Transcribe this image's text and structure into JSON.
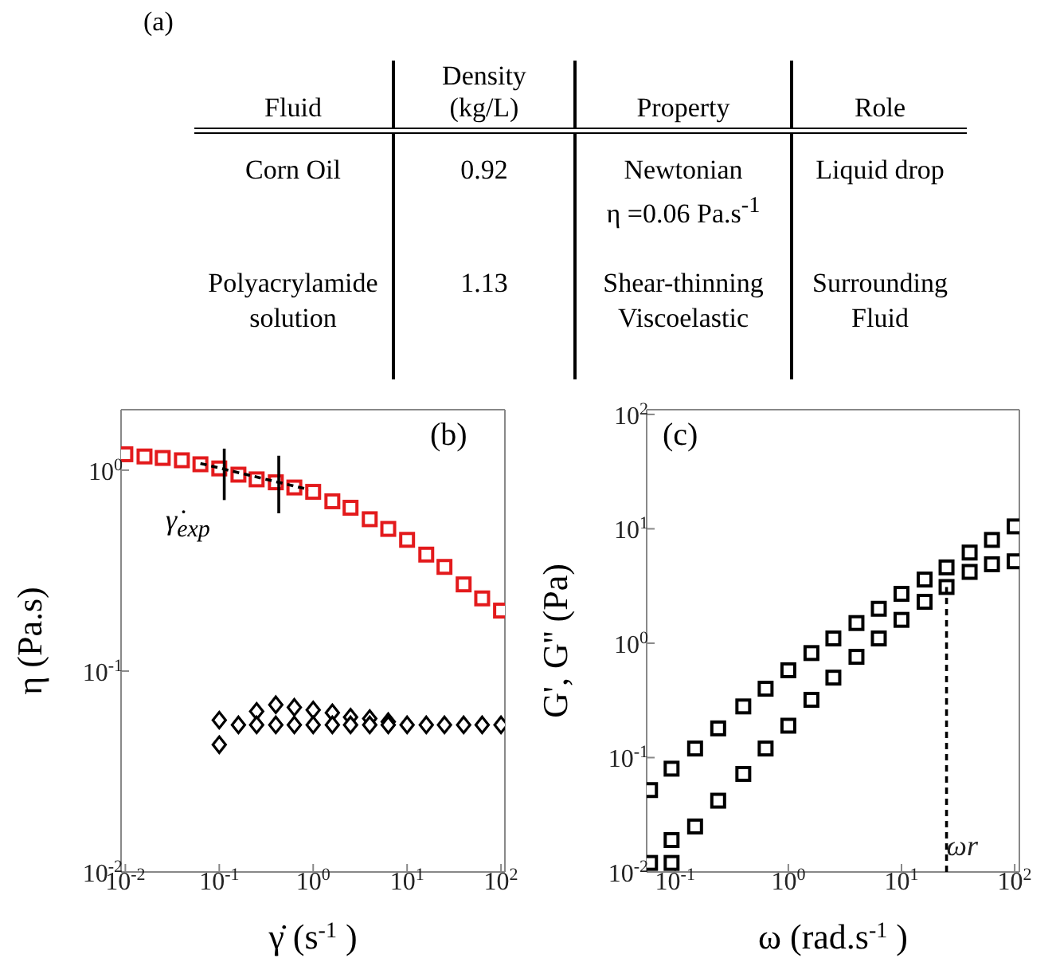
{
  "chart_data": [
    {
      "type": "other",
      "title": "(a)",
      "categories": [
        "Fluid",
        "Density\n(kg/L)",
        "Property",
        "Role"
      ],
      "annotations": [
        "Corn Oil",
        "0.92",
        "Newtonian\nη =0.06 Pa.s$^{-1}$",
        "Liquid drop",
        "Polyacrylamide\nsolution",
        "1.13",
        "Shear-thinning\nViscoelastic",
        "Surrounding\nFluid"
      ]
    },
    {
      "type": "scatter",
      "title": "(b)",
      "xlabel": "γ̇ (s$^{-1}$)",
      "ylabel": "η (Pa.s)",
      "log": "xy",
      "xlim": [
        0.009,
        110
      ],
      "ylim": [
        0.01,
        2
      ],
      "xticks": [
        {
          "value": 0.01,
          "label": "10$^{-2}$"
        },
        {
          "value": 0.1,
          "label": "10$^{-1}$"
        },
        {
          "value": 1,
          "label": "10$^{0}$"
        },
        {
          "value": 10,
          "label": "10$^{1}$"
        },
        {
          "value": 100,
          "label": "10$^{2}$"
        }
      ],
      "yticks": [
        {
          "value": 0.01,
          "label": "10$^{-2}$"
        },
        {
          "value": 0.1,
          "label": "10$^{-1}$"
        },
        {
          "value": 1,
          "label": "10$^{0}$"
        }
      ],
      "annotations": [
        "γ̇$_{exp}$"
      ],
      "series": [
        {
          "type": "scatter",
          "marker": "square",
          "color": "#e31a1c",
          "x": [
            0.01,
            0.016,
            0.025,
            0.04,
            0.063,
            0.1,
            0.16,
            0.25,
            0.4,
            0.63,
            1,
            1.6,
            2.5,
            4,
            6.3,
            10,
            16,
            25,
            40,
            63,
            100
          ],
          "values": [
            1.2,
            1.17,
            1.15,
            1.12,
            1.07,
            1.02,
            0.95,
            0.9,
            0.87,
            0.82,
            0.78,
            0.7,
            0.65,
            0.57,
            0.51,
            0.45,
            0.38,
            0.33,
            0.27,
            0.23,
            0.2
          ]
        },
        {
          "type": "scatter",
          "marker": "diamond",
          "color": "#000000",
          "x": [
            0.1,
            0.25,
            0.4,
            0.63,
            1,
            1.6,
            2.5,
            4,
            6.3
          ],
          "values": [
            0.057,
            0.063,
            0.068,
            0.066,
            0.064,
            0.062,
            0.059,
            0.058,
            0.056
          ]
        },
        {
          "type": "scatter",
          "marker": "diamond",
          "color": "#000000",
          "x": [
            0.1,
            0.16,
            0.25,
            0.4,
            0.63,
            1,
            1.6,
            2.5,
            4,
            6.3,
            10,
            16,
            25,
            40,
            63,
            100
          ],
          "values": [
            0.043,
            0.054,
            0.054,
            0.054,
            0.054,
            0.054,
            0.054,
            0.054,
            0.054,
            0.054,
            0.054,
            0.054,
            0.054,
            0.054,
            0.054,
            0.054
          ]
        },
        {
          "type": "line",
          "line_style": "dashed",
          "marker": "none",
          "color": "#000000",
          "x": [
            0.063,
            0.9
          ],
          "values": [
            1.08,
            0.8
          ]
        },
        {
          "type": "line",
          "line_style": "solid",
          "marker": "none",
          "color": "#000000",
          "x": [
            0.113,
            0.113
          ],
          "values": [
            0.71,
            1.28
          ]
        },
        {
          "type": "line",
          "line_style": "solid",
          "marker": "none",
          "color": "#000000",
          "x": [
            0.43,
            0.43
          ],
          "values": [
            0.61,
            1.18
          ]
        }
      ]
    },
    {
      "type": "scatter",
      "title": "(c)",
      "xlabel": "ω (rad.s$^{-1}$)",
      "ylabel": "G', G'' (Pa)",
      "log": "xy",
      "xlim": [
        0.056,
        110
      ],
      "ylim": [
        0.01,
        110
      ],
      "xticks": [
        {
          "value": 0.1,
          "label": "10$^{-1}$"
        },
        {
          "value": 1,
          "label": "10$^{0}$"
        },
        {
          "value": 10,
          "label": "10$^{1}$"
        },
        {
          "value": 100,
          "label": "10$^{2}$"
        }
      ],
      "yticks": [
        {
          "value": 0.01,
          "label": "10$^{-2}$"
        },
        {
          "value": 0.1,
          "label": "10$^{-1}$"
        },
        {
          "value": 1,
          "label": "10$^{0}$"
        },
        {
          "value": 10,
          "label": "10$^{1}$"
        },
        {
          "value": 100,
          "label": "10$^{2}$"
        }
      ],
      "annotations": [
        {
          "text": "ωr",
          "x": 25,
          "y": 0.014
        }
      ],
      "series": [
        {
          "type": "scatter",
          "marker": "square",
          "color": "#000000",
          "x": [
            0.06,
            0.093,
            0.15,
            0.24,
            0.4,
            0.63,
            1,
            1.6,
            2.5,
            4,
            6.3,
            10,
            16,
            25,
            40,
            63,
            100
          ],
          "values": [
            0.052,
            0.08,
            0.12,
            0.18,
            0.28,
            0.4,
            0.58,
            0.82,
            1.1,
            1.5,
            2,
            2.7,
            3.6,
            4.6,
            6.2,
            8,
            10.5
          ]
        },
        {
          "type": "scatter",
          "marker": "square",
          "color": "#000000",
          "x": [
            0.06,
            0.093,
            0.093,
            0.15,
            0.24,
            0.4,
            0.63,
            1,
            1.6,
            2.5,
            4,
            6.3,
            10,
            16,
            25,
            40,
            63,
            100
          ],
          "values": [
            0.012,
            0.012,
            0.019,
            0.025,
            0.042,
            0.072,
            0.12,
            0.19,
            0.32,
            0.5,
            0.76,
            1.1,
            1.6,
            2.3,
            3.1,
            4.2,
            4.9,
            5.2
          ]
        },
        {
          "type": "line",
          "line_style": "dashed",
          "marker": "none",
          "color": "#000000",
          "x": [
            25,
            25
          ],
          "values": [
            0.01,
            3.1
          ]
        }
      ]
    }
  ]
}
